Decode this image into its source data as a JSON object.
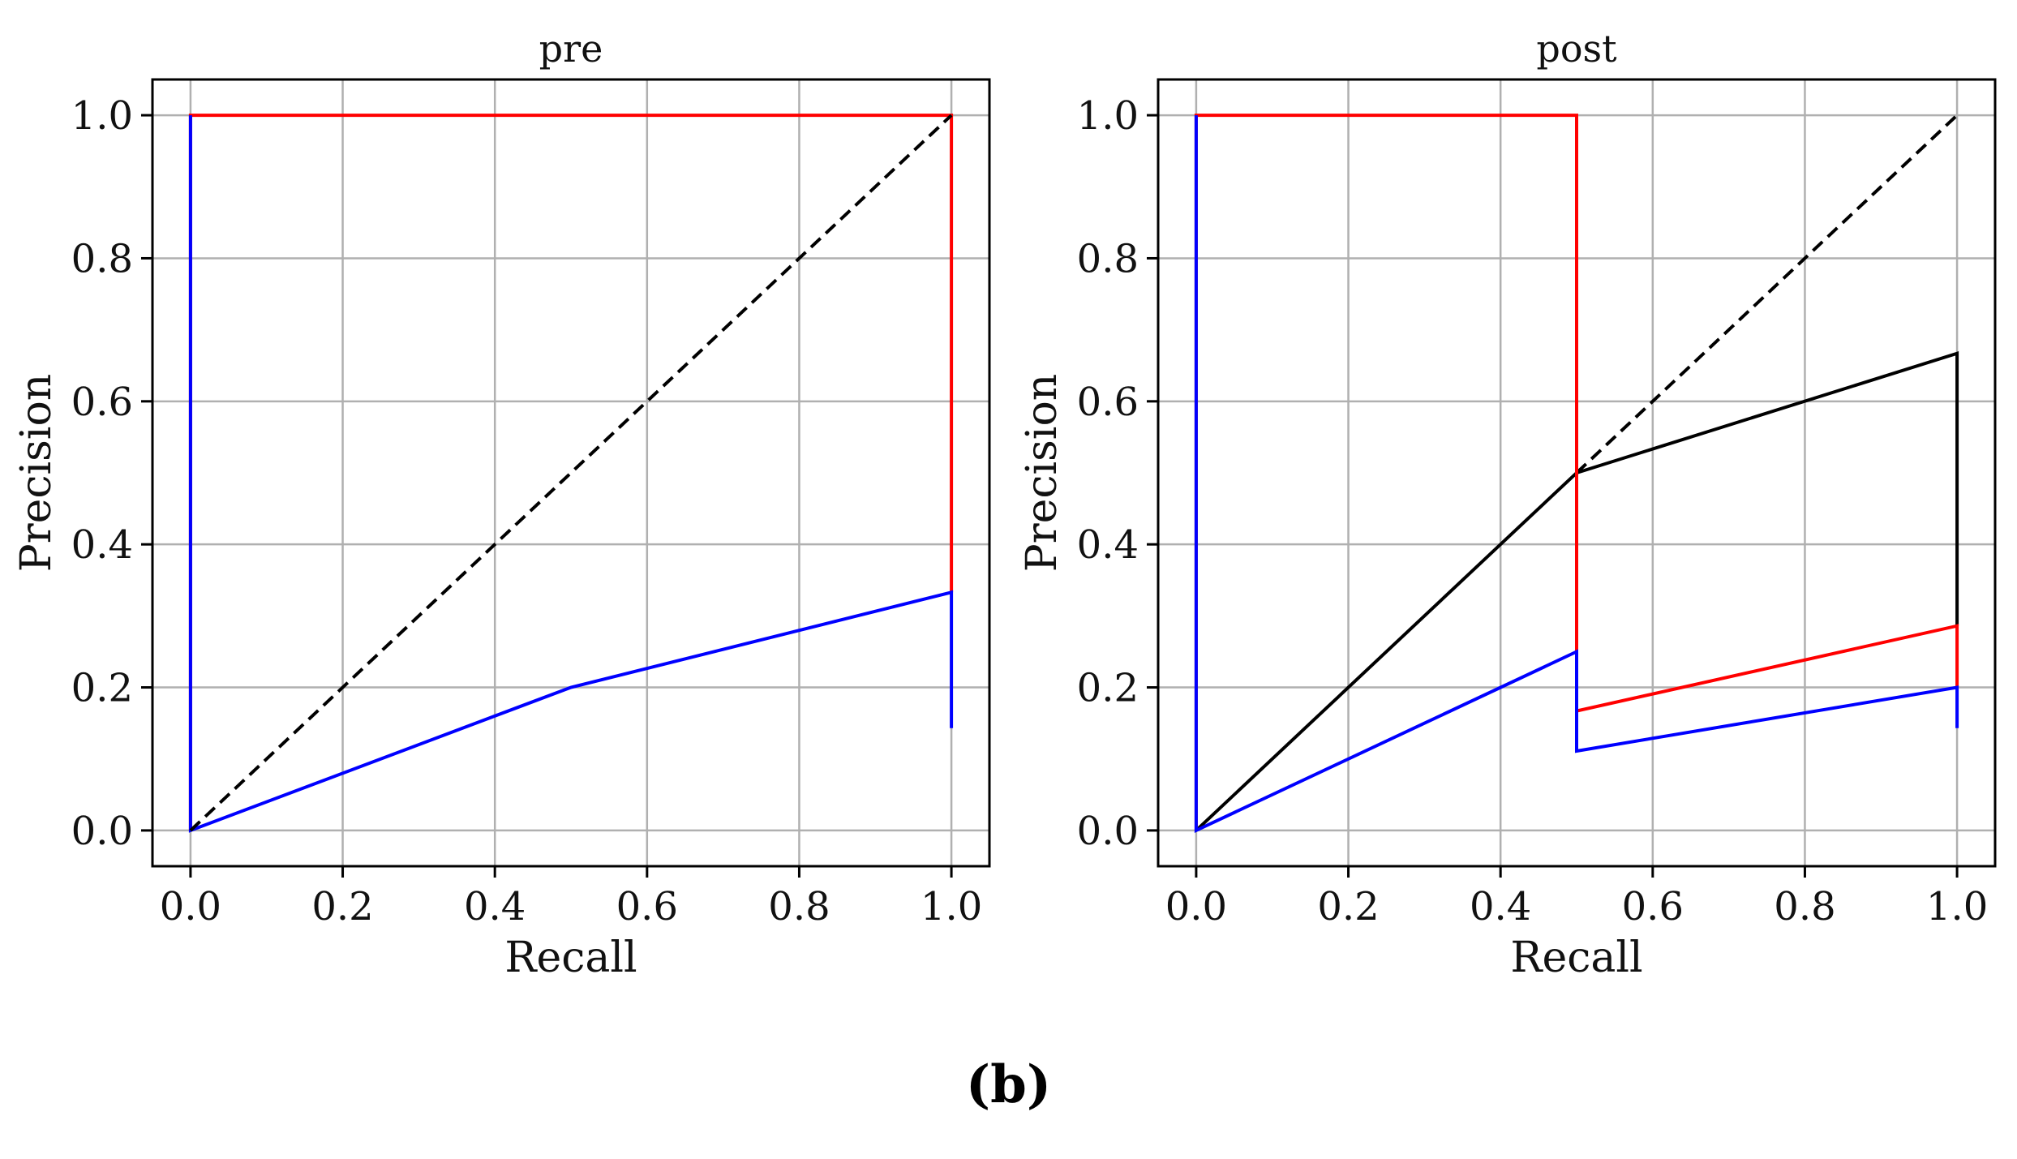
{
  "caption": "(b)",
  "colors": {
    "red": "#ff0000",
    "blue": "#0000ff",
    "black": "#000000",
    "grid": "#b0b0b0"
  },
  "chart_data": [
    {
      "type": "line",
      "title": "pre",
      "xlabel": "Recall",
      "ylabel": "Precision",
      "xlim": [
        -0.05,
        1.05
      ],
      "ylim": [
        -0.05,
        1.05
      ],
      "xticks": [
        0.0,
        0.2,
        0.4,
        0.6,
        0.8,
        1.0
      ],
      "xtick_labels": [
        "0.0",
        "0.2",
        "0.4",
        "0.6",
        "0.8",
        "1.0"
      ],
      "yticks": [
        0.0,
        0.2,
        0.4,
        0.6,
        0.8,
        1.0
      ],
      "ytick_labels": [
        "0.0",
        "0.2",
        "0.4",
        "0.6",
        "0.8",
        "1.0"
      ],
      "grid": true,
      "series": [
        {
          "color": "#ff0000",
          "dash": false,
          "x": [
            0.0,
            0.0,
            1.0,
            1.0
          ],
          "y": [
            0.0,
            1.0,
            1.0,
            0.333
          ]
        },
        {
          "color": "#0000ff",
          "dash": false,
          "x": [
            0.0,
            0.0,
            0.0,
            0.5,
            1.0,
            1.0
          ],
          "y": [
            1.0,
            0.0,
            0.0,
            0.2,
            0.333,
            0.143
          ]
        },
        {
          "color": "#000000",
          "dash": true,
          "x": [
            0.0,
            1.0
          ],
          "y": [
            0.0,
            1.0
          ]
        }
      ]
    },
    {
      "type": "line",
      "title": "post",
      "xlabel": "Recall",
      "ylabel": "Precision",
      "xlim": [
        -0.05,
        1.05
      ],
      "ylim": [
        -0.05,
        1.05
      ],
      "xticks": [
        0.0,
        0.2,
        0.4,
        0.6,
        0.8,
        1.0
      ],
      "xtick_labels": [
        "0.0",
        "0.2",
        "0.4",
        "0.6",
        "0.8",
        "1.0"
      ],
      "yticks": [
        0.0,
        0.2,
        0.4,
        0.6,
        0.8,
        1.0
      ],
      "ytick_labels": [
        "0.0",
        "0.2",
        "0.4",
        "0.6",
        "0.8",
        "1.0"
      ],
      "grid": true,
      "series": [
        {
          "color": "#000000",
          "dash": true,
          "x": [
            0.5,
            1.0
          ],
          "y": [
            0.5,
            1.0
          ]
        },
        {
          "color": "#000000",
          "dash": false,
          "x": [
            0.0,
            0.5,
            0.5,
            1.0,
            1.0
          ],
          "y": [
            0.0,
            0.5,
            0.5,
            0.667,
            0.286
          ]
        },
        {
          "color": "#ff0000",
          "dash": false,
          "x": [
            0.0,
            0.0,
            0.5,
            0.5,
            0.5,
            1.0,
            1.0
          ],
          "y": [
            0.0,
            1.0,
            1.0,
            0.5,
            0.167,
            0.286,
            0.2
          ]
        },
        {
          "color": "#0000ff",
          "dash": false,
          "x": [
            0.0,
            0.0,
            0.0,
            0.5,
            0.5,
            0.5,
            1.0,
            1.0
          ],
          "y": [
            1.0,
            0.0,
            0.0,
            0.25,
            0.167,
            0.111,
            0.2,
            0.143
          ]
        }
      ]
    }
  ]
}
